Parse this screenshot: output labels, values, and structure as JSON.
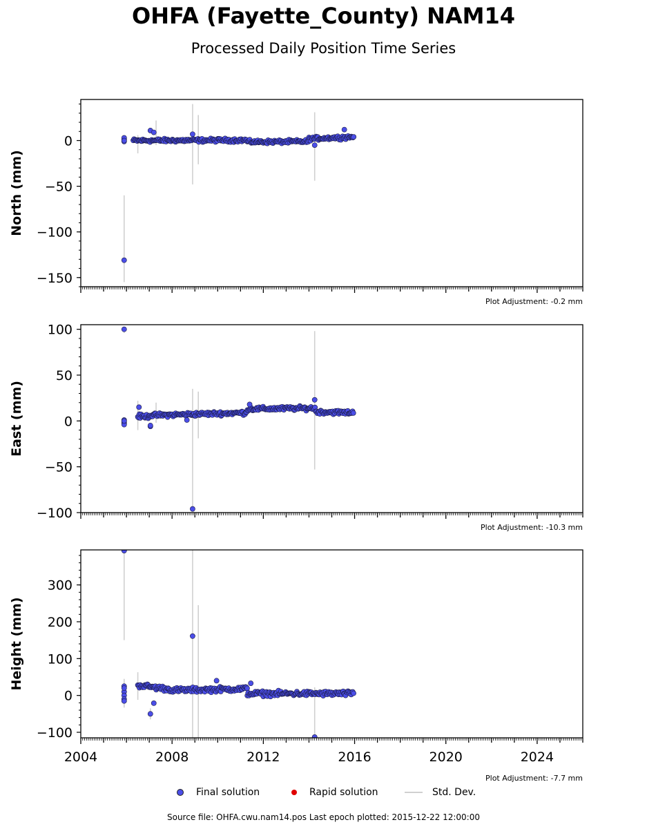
{
  "header": {
    "title": "OHFA (Fayette_County) NAM14",
    "subtitle": "Processed Daily Position Time Series"
  },
  "legend": {
    "final": "Final solution",
    "rapid": "Rapid solution",
    "std": "Std. Dev."
  },
  "footer": {
    "source": "Source file: OHFA.cwu.nam14.pos  Last epoch plotted: 2015-12-22 12:00:00"
  },
  "colors": {
    "final": "#4b4ee8",
    "rapid": "#e00000",
    "std": "#d0d0d0"
  },
  "chart_data": [
    {
      "type": "scatter",
      "ylabel": "North (mm)",
      "adjustment": "Plot Adjustment: -0.2 mm",
      "xlim": [
        2004,
        2026
      ],
      "ylim": [
        -160,
        45
      ],
      "yticks": [
        0,
        -50,
        -100,
        -150
      ],
      "segments": [
        [
          2006.3,
          2011.3,
          0,
          0.5
        ],
        [
          2011.3,
          2014.0,
          -1.5,
          0.5
        ],
        [
          2014.0,
          2015.97,
          2,
          2
        ]
      ],
      "outliers": [
        [
          2005.9,
          -131
        ],
        [
          2007.05,
          11
        ],
        [
          2007.2,
          9
        ],
        [
          2008.9,
          7
        ],
        [
          2015.55,
          12
        ],
        [
          2014.25,
          -5
        ]
      ],
      "cluster_2005": [
        [
          2005.9,
          1
        ],
        [
          2005.9,
          2
        ],
        [
          2005.9,
          3
        ],
        [
          2005.9,
          -1
        ],
        [
          2005.9,
          0
        ]
      ],
      "errorbars": [
        [
          2005.9,
          -60,
          -155
        ],
        [
          2008.9,
          40,
          -48
        ],
        [
          2009.15,
          28,
          -26
        ],
        [
          2014.25,
          31,
          -44
        ],
        [
          2007.3,
          22,
          -5
        ],
        [
          2006.5,
          6,
          -14
        ]
      ]
    },
    {
      "type": "scatter",
      "ylabel": "East (mm)",
      "adjustment": "Plot Adjustment: -10.3 mm",
      "xlim": [
        2004,
        2026
      ],
      "ylim": [
        -100,
        105
      ],
      "yticks": [
        100,
        50,
        0,
        -50,
        -100
      ],
      "segments": [
        [
          2006.5,
          2007.0,
          5,
          0
        ],
        [
          2007.0,
          2011.3,
          6,
          3
        ],
        [
          2011.3,
          2011.5,
          13,
          0
        ],
        [
          2011.5,
          2014.3,
          13,
          1
        ],
        [
          2014.3,
          2015.97,
          10,
          -1
        ]
      ],
      "outliers": [
        [
          2005.9,
          100
        ],
        [
          2008.9,
          -96
        ],
        [
          2014.25,
          23
        ],
        [
          2006.55,
          15
        ],
        [
          2007.05,
          -6
        ],
        [
          2007.05,
          -5
        ],
        [
          2008.65,
          1
        ],
        [
          2011.4,
          18
        ]
      ],
      "cluster_2005": [
        [
          2005.9,
          -1
        ],
        [
          2005.9,
          -3
        ],
        [
          2005.9,
          1
        ],
        [
          2005.9,
          -4
        ],
        [
          2005.9,
          0
        ]
      ],
      "errorbars": [
        [
          2005.9,
          99,
          96
        ],
        [
          2008.9,
          35,
          -95
        ],
        [
          2009.15,
          32,
          -19
        ],
        [
          2014.25,
          98,
          -53
        ],
        [
          2006.5,
          22,
          -10
        ],
        [
          2007.3,
          20,
          -2
        ]
      ]
    },
    {
      "type": "scatter",
      "ylabel": "Height (mm)",
      "adjustment": "Plot Adjustment: -7.7 mm",
      "xlim": [
        2004,
        2026
      ],
      "ylim": [
        -115,
        395
      ],
      "yticks": [
        300,
        200,
        100,
        0,
        -100
      ],
      "segments": [
        [
          2006.5,
          2008.0,
          28,
          -12
        ],
        [
          2008.0,
          2011.3,
          14,
          4
        ],
        [
          2011.3,
          2015.97,
          5,
          0
        ]
      ],
      "outliers": [
        [
          2005.9,
          393
        ],
        [
          2008.9,
          161
        ],
        [
          2014.25,
          -113
        ],
        [
          2007.05,
          -50
        ],
        [
          2007.2,
          -21
        ],
        [
          2009.95,
          40
        ],
        [
          2011.45,
          33
        ]
      ],
      "cluster_2005": [
        [
          2005.9,
          25
        ],
        [
          2005.9,
          10
        ],
        [
          2005.9,
          0
        ],
        [
          2005.9,
          -10
        ],
        [
          2005.9,
          20
        ],
        [
          2005.9,
          -15
        ]
      ],
      "errorbars": [
        [
          2005.9,
          393,
          150
        ],
        [
          2008.9,
          395,
          -115
        ],
        [
          2009.15,
          245,
          -115
        ],
        [
          2014.25,
          22,
          -115
        ],
        [
          2006.5,
          63,
          -12
        ],
        [
          2005.9,
          45,
          -33
        ],
        [
          2007.05,
          -35,
          -65
        ]
      ]
    }
  ]
}
